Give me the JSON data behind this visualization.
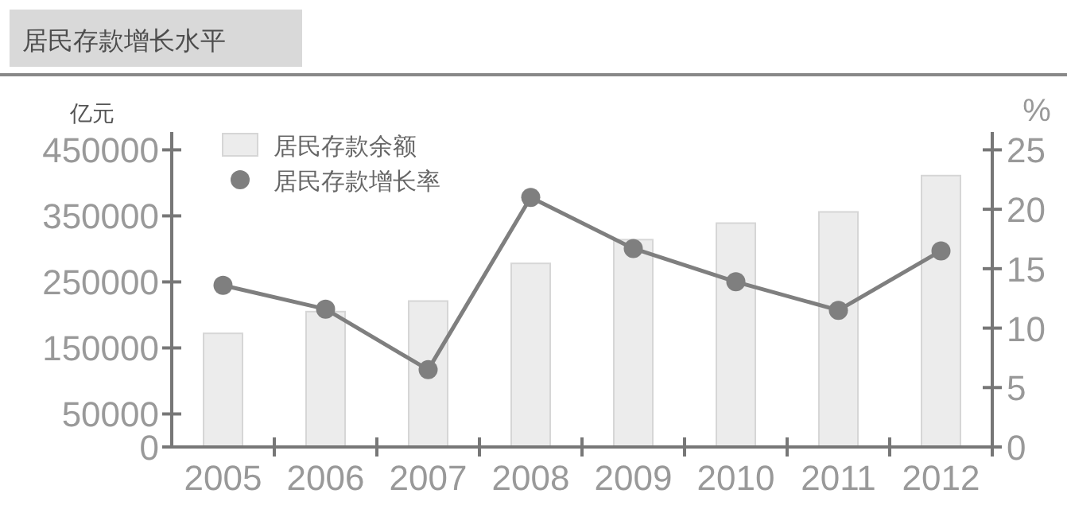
{
  "chart_data": {
    "type": "bar",
    "title": "居民存款增长水平",
    "ylabel": "亿元",
    "y2label": "%",
    "categories": [
      "2005",
      "2006",
      "2007",
      "2008",
      "2009",
      "2010",
      "2011",
      "2012"
    ],
    "series": [
      {
        "name": "居民存款余额",
        "color": "#ececec",
        "values": [
          172000,
          205000,
          221000,
          278000,
          314000,
          339000,
          356000,
          411000
        ]
      },
      {
        "name": "居民存款增长率",
        "type": "line",
        "axis": "y2",
        "color": "#7f7f7f",
        "marker": "circle",
        "values": [
          13.6,
          11.6,
          6.5,
          21.0,
          16.7,
          13.9,
          11.5,
          16.5
        ]
      }
    ],
    "ylim": [
      0,
      477000
    ],
    "yticks": [
      0,
      50000,
      150000,
      250000,
      350000,
      450000
    ],
    "y2lim": [
      0,
      26.5
    ],
    "y2ticks": [
      0,
      5,
      10,
      15,
      20,
      25
    ],
    "legend": "top left",
    "grid": false
  }
}
